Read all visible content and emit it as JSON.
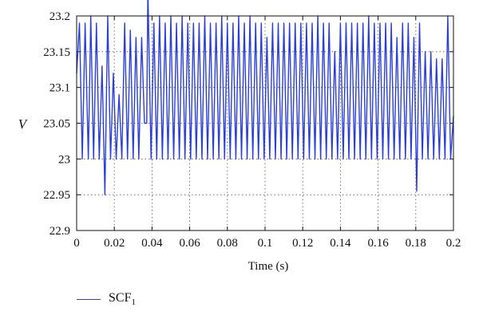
{
  "chart_data": {
    "type": "line",
    "xlabel": "Time (s)",
    "ylabel": "V",
    "xlim": [
      0,
      0.2
    ],
    "ylim": [
      22.9,
      23.2
    ],
    "xticks": [
      "0",
      "0.02",
      "0.04",
      "0.06",
      "0.08",
      "0.1",
      "0.12",
      "0.14",
      "0.16",
      "0.18",
      "0.2"
    ],
    "yticks": [
      "22.9",
      "22.95",
      "23",
      "23.05",
      "23.1",
      "23.15",
      "23.2"
    ],
    "grid": true,
    "legend_position": "below-left",
    "series": [
      {
        "name": "SCF",
        "name_subscript": "1",
        "color": "#2b3fd6",
        "x": [
          0,
          0.0015,
          0.003,
          0.0045,
          0.0062,
          0.0075,
          0.009,
          0.0105,
          0.012,
          0.0135,
          0.015,
          0.0165,
          0.018,
          0.0195,
          0.021,
          0.0225,
          0.024,
          0.0255,
          0.027,
          0.0285,
          0.03,
          0.0315,
          0.033,
          0.0345,
          0.036,
          0.0372,
          0.0378,
          0.0395,
          0.041,
          0.0425,
          0.044,
          0.0455,
          0.047,
          0.0485,
          0.05,
          0.0515,
          0.053,
          0.0545,
          0.056,
          0.0575,
          0.059,
          0.0605,
          0.062,
          0.0635,
          0.065,
          0.0665,
          0.068,
          0.0695,
          0.071,
          0.0725,
          0.074,
          0.0755,
          0.077,
          0.0785,
          0.08,
          0.0815,
          0.083,
          0.0845,
          0.086,
          0.0875,
          0.089,
          0.0905,
          0.092,
          0.0935,
          0.095,
          0.0965,
          0.098,
          0.0995,
          0.101,
          0.1025,
          0.104,
          0.1055,
          0.107,
          0.1085,
          0.11,
          0.1115,
          0.113,
          0.1145,
          0.116,
          0.1175,
          0.119,
          0.1205,
          0.122,
          0.1235,
          0.125,
          0.1265,
          0.128,
          0.1295,
          0.131,
          0.1325,
          0.134,
          0.1355,
          0.137,
          0.1385,
          0.14,
          0.1415,
          0.143,
          0.1445,
          0.146,
          0.1475,
          0.149,
          0.1505,
          0.152,
          0.1535,
          0.155,
          0.1565,
          0.158,
          0.1595,
          0.161,
          0.1625,
          0.164,
          0.1655,
          0.167,
          0.1685,
          0.17,
          0.1715,
          0.173,
          0.1745,
          0.176,
          0.1775,
          0.179,
          0.1805,
          0.182,
          0.1835,
          0.185,
          0.1865,
          0.188,
          0.1895,
          0.191,
          0.1925,
          0.194,
          0.1955,
          0.197,
          0.1985,
          0.2
        ],
        "y": [
          23.12,
          23.19,
          23.0,
          23.19,
          23.0,
          23.2,
          23.0,
          23.19,
          23.0,
          23.13,
          22.95,
          23.2,
          23.0,
          23.12,
          23.0,
          23.09,
          23.0,
          23.19,
          23.0,
          23.18,
          23.0,
          23.17,
          23.0,
          23.17,
          23.05,
          23.05,
          23.24,
          23.0,
          23.19,
          23.0,
          23.2,
          23.0,
          23.19,
          23.0,
          23.2,
          23.0,
          23.19,
          23.0,
          23.2,
          23.0,
          23.19,
          23.0,
          23.19,
          23.0,
          23.19,
          23.0,
          23.2,
          23.0,
          23.19,
          23.0,
          23.19,
          23.0,
          23.2,
          23.0,
          23.19,
          23.0,
          23.19,
          23.0,
          23.2,
          23.0,
          23.19,
          23.0,
          23.2,
          23.0,
          23.19,
          23.0,
          23.19,
          23.0,
          23.17,
          23.0,
          23.19,
          23.0,
          23.19,
          23.0,
          23.19,
          23.0,
          23.19,
          23.0,
          23.19,
          23.0,
          23.19,
          23.0,
          23.19,
          23.0,
          23.19,
          23.0,
          23.2,
          23.0,
          23.19,
          23.0,
          23.19,
          23.0,
          23.15,
          23.0,
          23.19,
          23.0,
          23.19,
          23.0,
          23.19,
          23.0,
          23.19,
          23.0,
          23.19,
          23.0,
          23.2,
          23.0,
          23.19,
          23.0,
          23.19,
          23.0,
          23.19,
          23.0,
          23.19,
          23.0,
          23.17,
          23.0,
          23.19,
          23.0,
          23.19,
          23.0,
          23.17,
          22.955,
          23.19,
          23.0,
          23.15,
          23.0,
          23.15,
          23.0,
          23.14,
          23.0,
          23.14,
          23.0,
          23.2,
          23.0,
          23.06
        ]
      }
    ]
  }
}
